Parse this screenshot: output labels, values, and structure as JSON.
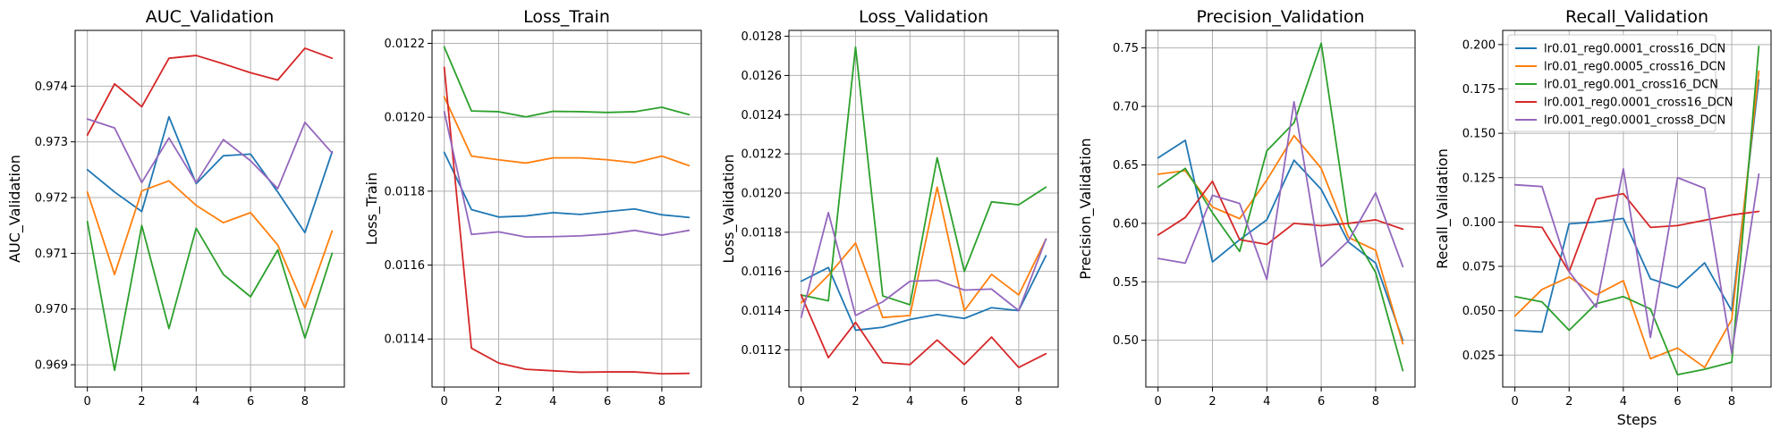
{
  "colors": [
    "#1f77b4",
    "#ff7f0e",
    "#2ca02c",
    "#d62728",
    "#9467bd"
  ],
  "legend": {
    "placement": "upper-left",
    "entries": [
      "lr0.01_reg0.0001_cross16_DCN",
      "lr0.01_reg0.0005_cross16_DCN",
      "lr0.01_reg0.001_cross16_DCN",
      "lr0.001_reg0.0001_cross16_DCN",
      "lr0.001_reg0.0001_cross8_DCN"
    ]
  },
  "chart_data": [
    {
      "type": "line",
      "title": "AUC_Validation",
      "ylabel": "AUC_Validation",
      "xlabel": "",
      "x": [
        0,
        1,
        2,
        3,
        4,
        5,
        6,
        7,
        8,
        9
      ],
      "xticks": [
        0,
        2,
        4,
        6,
        8
      ],
      "xlim": [
        -0.45,
        9.45
      ],
      "ylim": [
        0.9686,
        0.975
      ],
      "yticks": [
        0.969,
        0.97,
        0.971,
        0.972,
        0.973,
        0.974
      ],
      "yticklabels": [
        "0.969",
        "0.970",
        "0.971",
        "0.972",
        "0.973",
        "0.974"
      ],
      "grid": true,
      "series": [
        {
          "name": "lr0.01_reg0.0001_cross16_DCN",
          "values": [
            0.9725,
            0.9721,
            0.97175,
            0.97345,
            0.97225,
            0.97275,
            0.97278,
            0.9721,
            0.97137,
            0.97282
          ]
        },
        {
          "name": "lr0.01_reg0.0005_cross16_DCN",
          "values": [
            0.9721,
            0.97062,
            0.97212,
            0.9723,
            0.97186,
            0.97155,
            0.97173,
            0.97115,
            0.97002,
            0.9714
          ]
        },
        {
          "name": "lr0.01_reg0.001_cross16_DCN",
          "values": [
            0.97157,
            0.9689,
            0.9715,
            0.96965,
            0.97145,
            0.97062,
            0.97022,
            0.97106,
            0.96948,
            0.971
          ]
        },
        {
          "name": "lr0.001_reg0.0001_cross16_DCN",
          "values": [
            0.97312,
            0.97404,
            0.97363,
            0.9745,
            0.97455,
            0.9744,
            0.97424,
            0.97411,
            0.97468,
            0.9745
          ]
        },
        {
          "name": "lr0.001_reg0.0001_cross8_DCN",
          "values": [
            0.97341,
            0.97325,
            0.97227,
            0.97307,
            0.97227,
            0.97304,
            0.97266,
            0.97216,
            0.97335,
            0.9728
          ]
        }
      ]
    },
    {
      "type": "line",
      "title": "Loss_Train",
      "ylabel": "Loss_Train",
      "xlabel": "",
      "x": [
        0,
        1,
        2,
        3,
        4,
        5,
        6,
        7,
        8,
        9
      ],
      "xticks": [
        0,
        2,
        4,
        6,
        8
      ],
      "xlim": [
        -0.45,
        9.45
      ],
      "ylim": [
        0.01127,
        0.012235
      ],
      "yticks": [
        0.0114,
        0.0116,
        0.0118,
        0.012,
        0.0122
      ],
      "yticklabels": [
        "0.0114",
        "0.0116",
        "0.0118",
        "0.0120",
        "0.0122"
      ],
      "grid": true,
      "series": [
        {
          "name": "lr0.01_reg0.0001_cross16_DCN",
          "values": [
            0.011905,
            0.01175,
            0.01173,
            0.011733,
            0.011742,
            0.011737,
            0.011745,
            0.011752,
            0.011736,
            0.011729
          ]
        },
        {
          "name": "lr0.01_reg0.0005_cross16_DCN",
          "values": [
            0.012055,
            0.011895,
            0.011885,
            0.011876,
            0.01189,
            0.01189,
            0.011885,
            0.011877,
            0.011895,
            0.011869
          ]
        },
        {
          "name": "lr0.01_reg0.001_cross16_DCN",
          "values": [
            0.01219,
            0.012017,
            0.012015,
            0.012001,
            0.012016,
            0.012015,
            0.012013,
            0.012015,
            0.012027,
            0.012007
          ]
        },
        {
          "name": "lr0.001_reg0.0001_cross16_DCN",
          "values": [
            0.012135,
            0.011375,
            0.011335,
            0.011318,
            0.011314,
            0.01131,
            0.011311,
            0.011311,
            0.011306,
            0.011307
          ]
        },
        {
          "name": "lr0.001_reg0.0001_cross8_DCN",
          "values": [
            0.012015,
            0.011683,
            0.01169,
            0.011676,
            0.011677,
            0.011679,
            0.011684,
            0.011694,
            0.011681,
            0.011694
          ]
        }
      ]
    },
    {
      "type": "line",
      "title": "Loss_Validation",
      "ylabel": "Loss_Validation",
      "xlabel": "",
      "x": [
        0,
        1,
        2,
        3,
        4,
        5,
        6,
        7,
        8,
        9
      ],
      "xticks": [
        0,
        2,
        4,
        6,
        8
      ],
      "xlim": [
        -0.45,
        9.45
      ],
      "ylim": [
        0.01101,
        0.01283
      ],
      "yticks": [
        0.0112,
        0.0114,
        0.0116,
        0.0118,
        0.012,
        0.0122,
        0.0124,
        0.0126,
        0.0128
      ],
      "yticklabels": [
        "0.0112",
        "0.0114",
        "0.0116",
        "0.0118",
        "0.0120",
        "0.0122",
        "0.0124",
        "0.0126",
        "0.0128"
      ],
      "grid": true,
      "series": [
        {
          "name": "lr0.01_reg0.0001_cross16_DCN",
          "values": [
            0.01155,
            0.01162,
            0.0113,
            0.011315,
            0.011355,
            0.01138,
            0.01136,
            0.011415,
            0.0114,
            0.01168
          ]
        },
        {
          "name": "lr0.01_reg0.0005_cross16_DCN",
          "values": [
            0.01144,
            0.01158,
            0.011745,
            0.011365,
            0.011375,
            0.01203,
            0.0114,
            0.011585,
            0.01148,
            0.011765
          ]
        },
        {
          "name": "lr0.01_reg0.001_cross16_DCN",
          "values": [
            0.01148,
            0.01145,
            0.012745,
            0.011475,
            0.01143,
            0.01218,
            0.0116,
            0.011955,
            0.01194,
            0.01203
          ]
        },
        {
          "name": "lr0.001_reg0.0001_cross16_DCN",
          "values": [
            0.01148,
            0.01116,
            0.01134,
            0.011135,
            0.011125,
            0.01125,
            0.011125,
            0.011265,
            0.01111,
            0.01118
          ]
        },
        {
          "name": "lr0.001_reg0.0001_cross8_DCN",
          "values": [
            0.011365,
            0.0119,
            0.011375,
            0.011445,
            0.01155,
            0.011555,
            0.011505,
            0.01151,
            0.0114,
            0.011765
          ]
        }
      ]
    },
    {
      "type": "line",
      "title": "Precision_Validation",
      "ylabel": "Precision_Validation",
      "xlabel": "",
      "x": [
        0,
        1,
        2,
        3,
        4,
        5,
        6,
        7,
        8,
        9
      ],
      "xticks": [
        0,
        2,
        4,
        6,
        8
      ],
      "xlim": [
        -0.45,
        9.45
      ],
      "ylim": [
        0.46,
        0.765
      ],
      "yticks": [
        0.5,
        0.55,
        0.6,
        0.65,
        0.7,
        0.75
      ],
      "yticklabels": [
        "0.50",
        "0.55",
        "0.60",
        "0.65",
        "0.70",
        "0.75"
      ],
      "grid": true,
      "series": [
        {
          "name": "lr0.01_reg0.0001_cross16_DCN",
          "values": [
            0.656,
            0.671,
            0.567,
            0.586,
            0.603,
            0.654,
            0.629,
            0.584,
            0.566,
            0.5
          ]
        },
        {
          "name": "lr0.01_reg0.0005_cross16_DCN",
          "values": [
            0.642,
            0.645,
            0.614,
            0.604,
            0.637,
            0.675,
            0.647,
            0.588,
            0.577,
            0.497
          ]
        },
        {
          "name": "lr0.01_reg0.001_cross16_DCN",
          "values": [
            0.631,
            0.647,
            0.609,
            0.576,
            0.662,
            0.686,
            0.754,
            0.598,
            0.558,
            0.474
          ]
        },
        {
          "name": "lr0.001_reg0.0001_cross16_DCN",
          "values": [
            0.59,
            0.605,
            0.636,
            0.586,
            0.582,
            0.6,
            0.598,
            0.6,
            0.603,
            0.595
          ]
        },
        {
          "name": "lr0.001_reg0.0001_cross8_DCN",
          "values": [
            0.57,
            0.566,
            0.624,
            0.617,
            0.552,
            0.704,
            0.563,
            0.585,
            0.626,
            0.563
          ]
        }
      ]
    },
    {
      "type": "line",
      "title": "Recall_Validation",
      "ylabel": "Recall_Validation",
      "xlabel": "Steps",
      "x": [
        0,
        1,
        2,
        3,
        4,
        5,
        6,
        7,
        8,
        9
      ],
      "xticks": [
        0,
        2,
        4,
        6,
        8
      ],
      "xlim": [
        -0.45,
        9.45
      ],
      "ylim": [
        0.007,
        0.208
      ],
      "yticks": [
        0.025,
        0.05,
        0.075,
        0.1,
        0.125,
        0.15,
        0.175,
        0.2
      ],
      "yticklabels": [
        "0.025",
        "0.050",
        "0.075",
        "0.100",
        "0.125",
        "0.150",
        "0.175",
        "0.200"
      ],
      "grid": true,
      "series": [
        {
          "name": "lr0.01_reg0.0001_cross16_DCN",
          "values": [
            0.039,
            0.038,
            0.099,
            0.1,
            0.102,
            0.068,
            0.063,
            0.077,
            0.05,
            0.18
          ]
        },
        {
          "name": "lr0.01_reg0.0005_cross16_DCN",
          "values": [
            0.047,
            0.062,
            0.069,
            0.059,
            0.067,
            0.023,
            0.029,
            0.018,
            0.045,
            0.185
          ]
        },
        {
          "name": "lr0.01_reg0.001_cross16_DCN",
          "values": [
            0.058,
            0.055,
            0.039,
            0.054,
            0.058,
            0.051,
            0.014,
            0.017,
            0.021,
            0.199
          ]
        },
        {
          "name": "lr0.001_reg0.0001_cross16_DCN",
          "values": [
            0.098,
            0.097,
            0.072,
            0.113,
            0.116,
            0.097,
            0.098,
            0.101,
            0.104,
            0.106
          ]
        },
        {
          "name": "lr0.001_reg0.0001_cross8_DCN",
          "values": [
            0.121,
            0.12,
            0.072,
            0.052,
            0.13,
            0.035,
            0.125,
            0.119,
            0.026,
            0.127
          ]
        }
      ]
    }
  ]
}
